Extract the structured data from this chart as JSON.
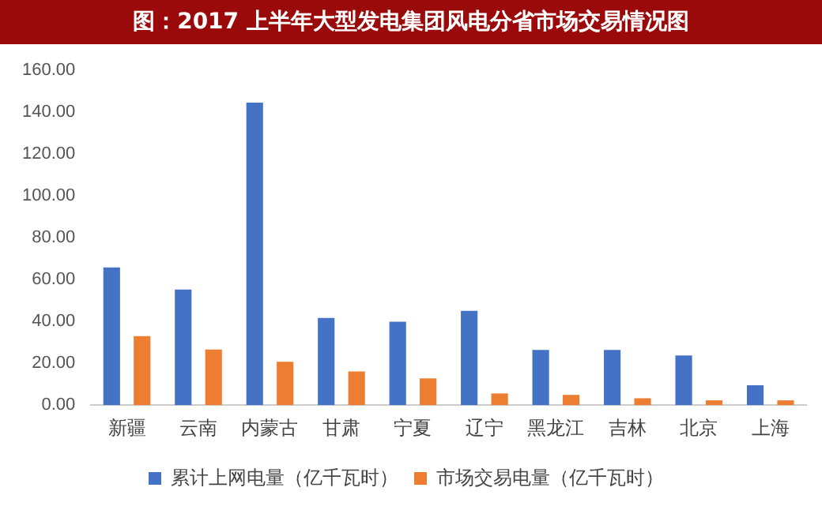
{
  "chart_data": {
    "type": "bar",
    "title": "图：2017 上半年大型发电集团风电分省市场交易情况图",
    "categories": [
      "新疆",
      "云南",
      "内蒙古",
      "甘肃",
      "宁夏",
      "辽宁",
      "黑龙江",
      "吉林",
      "北京",
      "上海"
    ],
    "series": [
      {
        "name": "累计上网电量（亿千瓦时）",
        "color": "#4472c4",
        "values": [
          65.8,
          55.3,
          144.6,
          41.7,
          39.9,
          45.1,
          26.4,
          26.4,
          23.8,
          9.5
        ]
      },
      {
        "name": "市场交易电量（亿千瓦时）",
        "color": "#ed7d31",
        "values": [
          33.0,
          26.6,
          20.7,
          16.1,
          12.8,
          5.6,
          4.9,
          3.3,
          2.3,
          2.3
        ]
      }
    ],
    "ylim": [
      0,
      160
    ],
    "yticks": [
      {
        "value": 0,
        "label": "0.00"
      },
      {
        "value": 20,
        "label": "20.00"
      },
      {
        "value": 40,
        "label": "40.00"
      },
      {
        "value": 60,
        "label": "60.00"
      },
      {
        "value": 80,
        "label": "80.00"
      },
      {
        "value": 100,
        "label": "100.00"
      },
      {
        "value": 120,
        "label": "120.00"
      },
      {
        "value": 140,
        "label": "140.00"
      },
      {
        "value": 160,
        "label": "160.00"
      }
    ],
    "grid": false,
    "legend": "bottom"
  }
}
